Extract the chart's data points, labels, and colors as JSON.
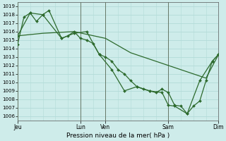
{
  "title": "Pression niveau de la mer( hPa )",
  "background_color": "#ceecea",
  "grid_color": "#b2dbd8",
  "line_color": "#2d6a2d",
  "ylim": [
    1005.5,
    1019.5
  ],
  "yticks": [
    1006,
    1007,
    1008,
    1009,
    1010,
    1011,
    1012,
    1013,
    1014,
    1015,
    1016,
    1017,
    1018,
    1019
  ],
  "xlim": [
    0,
    16
  ],
  "day_ticks_x": [
    0,
    5,
    7,
    12,
    16
  ],
  "day_labels": [
    "Jeu",
    "Lun",
    "Ven",
    "Sam",
    "Dim"
  ],
  "vline_x": [
    0,
    5,
    7,
    12,
    16
  ],
  "series1_x": [
    0.0,
    0.5,
    1.0,
    1.5,
    2.0,
    2.5,
    3.5,
    4.0,
    4.5,
    5.0,
    5.5,
    6.0,
    6.5,
    7.0,
    7.5,
    8.0,
    8.5,
    9.0,
    9.5,
    10.0,
    10.5,
    11.0,
    11.5,
    12.0,
    12.5,
    13.0,
    13.5,
    14.0,
    14.5,
    15.0,
    15.5,
    16.0
  ],
  "series1_y": [
    1014.5,
    1017.7,
    1018.2,
    1017.2,
    1018.0,
    1018.5,
    1015.2,
    1015.5,
    1016.0,
    1015.2,
    1015.0,
    1014.6,
    1013.3,
    1013.0,
    1012.5,
    1011.5,
    1011.0,
    1010.2,
    1009.5,
    1009.2,
    1009.0,
    1008.8,
    1009.2,
    1008.8,
    1007.3,
    1007.2,
    1006.3,
    1007.2,
    1007.8,
    1010.2,
    1012.5,
    1013.3
  ],
  "series2_x": [
    0,
    2.0,
    4.5,
    7.0,
    9.0,
    11.0,
    13.0,
    15.0,
    16.0
  ],
  "series2_y": [
    1015.5,
    1015.8,
    1016.0,
    1015.2,
    1013.5,
    1012.5,
    1011.5,
    1010.5,
    1013.3
  ],
  "series3_x": [
    0,
    1.0,
    2.0,
    3.5,
    4.5,
    5.5,
    6.5,
    7.5,
    8.5,
    9.5,
    10.5,
    11.5,
    12.0,
    12.5,
    13.5,
    14.5,
    15.5,
    16.0
  ],
  "series3_y": [
    1015.5,
    1018.2,
    1018.0,
    1015.2,
    1015.8,
    1016.0,
    1013.3,
    1011.5,
    1009.0,
    1009.5,
    1009.0,
    1008.8,
    1007.3,
    1007.2,
    1006.3,
    1010.2,
    1012.5,
    1013.3
  ]
}
